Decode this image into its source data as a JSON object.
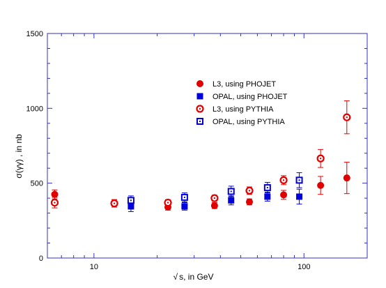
{
  "chart_data": {
    "type": "scatter",
    "xlabel": "s, in GeV",
    "xlabel_prefix": "√",
    "ylabel": "σ(γγ) , in nb",
    "xscale": "log",
    "xlim": [
      6,
      200
    ],
    "ylim": [
      0,
      1500
    ],
    "xticks": [
      10,
      100
    ],
    "yticks": [
      0,
      500,
      1000,
      1500
    ],
    "grid": false,
    "legend_position": "upper-center-right",
    "colors": {
      "red": "#e00000",
      "blue": "#0000dd"
    },
    "series": [
      {
        "name": "L3,      using PHOJET",
        "marker": "filled-circle",
        "color": "#e00000",
        "points": [
          {
            "x": 6.5,
            "y": 425,
            "err": 30
          },
          {
            "x": 12.5,
            "y": 365,
            "err": 25
          },
          {
            "x": 22.5,
            "y": 340,
            "err": 20
          },
          {
            "x": 37.5,
            "y": 350,
            "err": 20
          },
          {
            "x": 55,
            "y": 375,
            "err": 20
          },
          {
            "x": 80,
            "y": 422,
            "err": 30
          },
          {
            "x": 120,
            "y": 485,
            "err": 60
          },
          {
            "x": 160,
            "y": 535,
            "err": 105
          }
        ]
      },
      {
        "name": "OPAL, using PHOJET",
        "marker": "filled-square",
        "color": "#0000dd",
        "points": [
          {
            "x": 15,
            "y": 345,
            "err": 35
          },
          {
            "x": 27,
            "y": 345,
            "err": 25
          },
          {
            "x": 45,
            "y": 385,
            "err": 30
          },
          {
            "x": 67,
            "y": 410,
            "err": 30
          },
          {
            "x": 95,
            "y": 410,
            "err": 50
          }
        ]
      },
      {
        "name": "L3,      using PYTHIA",
        "marker": "open-circle",
        "color": "#e00000",
        "points": [
          {
            "x": 6.5,
            "y": 370,
            "err": 35
          },
          {
            "x": 12.5,
            "y": 365,
            "err": 25
          },
          {
            "x": 22.5,
            "y": 370,
            "err": 20
          },
          {
            "x": 37.5,
            "y": 400,
            "err": 20
          },
          {
            "x": 55,
            "y": 450,
            "err": 25
          },
          {
            "x": 80,
            "y": 520,
            "err": 30
          },
          {
            "x": 120,
            "y": 665,
            "err": 60
          },
          {
            "x": 160,
            "y": 940,
            "err": 110
          }
        ]
      },
      {
        "name": "OPAL, using PYTHIA",
        "marker": "open-square",
        "color": "#0000dd",
        "points": [
          {
            "x": 15,
            "y": 385,
            "err": 30
          },
          {
            "x": 27,
            "y": 405,
            "err": 30
          },
          {
            "x": 45,
            "y": 445,
            "err": 35
          },
          {
            "x": 67,
            "y": 470,
            "err": 35
          },
          {
            "x": 95,
            "y": 520,
            "err": 50
          }
        ]
      }
    ]
  }
}
